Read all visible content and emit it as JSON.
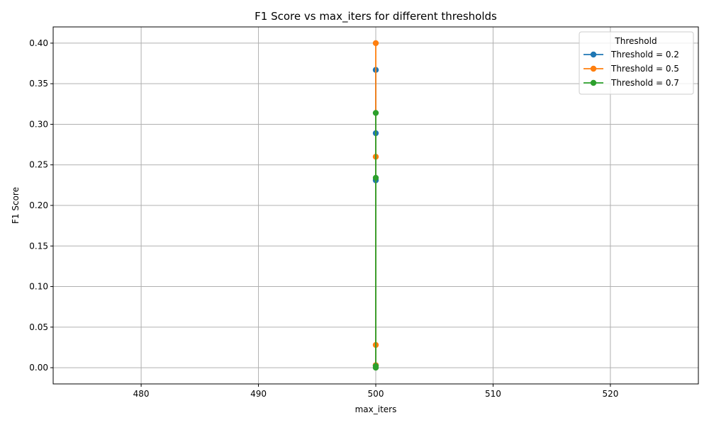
{
  "chart_data": {
    "type": "line",
    "title": "F1 Score vs max_iters for different thresholds",
    "xlabel": "max_iters",
    "ylabel": "F1 Score",
    "xlim": [
      472.5,
      527.5
    ],
    "ylim": [
      -0.02,
      0.42
    ],
    "xticks": [
      480,
      490,
      500,
      510,
      520
    ],
    "xtick_labels": [
      "480",
      "490",
      "500",
      "510",
      "520"
    ],
    "yticks": [
      0.0,
      0.05,
      0.1,
      0.15,
      0.2,
      0.25,
      0.3,
      0.35,
      0.4
    ],
    "ytick_labels": [
      "0.00",
      "0.05",
      "0.10",
      "0.15",
      "0.20",
      "0.25",
      "0.30",
      "0.35",
      "0.40"
    ],
    "grid": true,
    "legend": {
      "title": "Threshold",
      "placement": "top-right"
    },
    "series": [
      {
        "name": "Threshold = 0.2",
        "color": "#1f77b4",
        "x": [
          500,
          500,
          500,
          500
        ],
        "y": [
          0.003,
          0.231,
          0.289,
          0.367
        ]
      },
      {
        "name": "Threshold = 0.5",
        "color": "#ff7f0e",
        "x": [
          500,
          500,
          500,
          500
        ],
        "y": [
          0.028,
          0.26,
          0.4,
          0.003
        ]
      },
      {
        "name": "Threshold = 0.7",
        "color": "#2ca02c",
        "x": [
          500,
          500,
          500,
          500
        ],
        "y": [
          0.0,
          0.234,
          0.314,
          0.002
        ]
      }
    ]
  }
}
